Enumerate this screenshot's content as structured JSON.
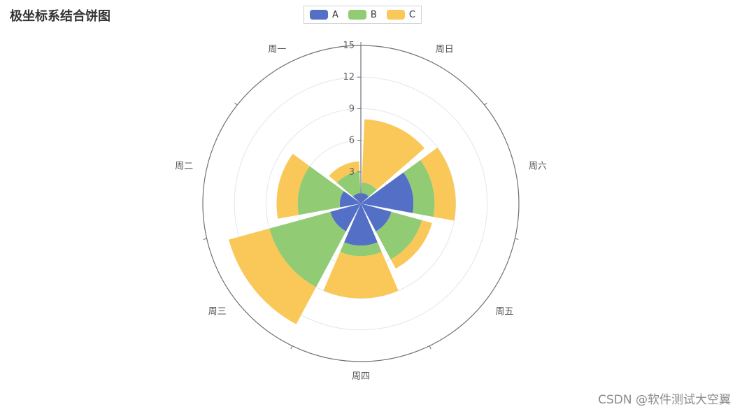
{
  "title": "极坐标系结合饼图",
  "watermark": "CSDN @软件测试大空翼",
  "legend": [
    {
      "name": "A",
      "color": "#5470c6"
    },
    {
      "name": "B",
      "color": "#91cc75"
    },
    {
      "name": "C",
      "color": "#fac858"
    }
  ],
  "chart_data": {
    "type": "bar",
    "coordinate_system": "polar",
    "stacked": true,
    "categories": [
      "周一",
      "周二",
      "周三",
      "周四",
      "周五",
      "周六",
      "周日"
    ],
    "series": [
      {
        "name": "A",
        "values": [
          1,
          2,
          3,
          4,
          3,
          5,
          1
        ]
      },
      {
        "name": "B",
        "values": [
          2,
          4,
          6,
          1,
          3,
          2,
          1
        ]
      },
      {
        "name": "C",
        "values": [
          1,
          2,
          4,
          4,
          1,
          2,
          6
        ]
      }
    ],
    "radius_axis": {
      "min": 0,
      "max": 15,
      "ticks": [
        0,
        3,
        6,
        9,
        12,
        15
      ]
    },
    "grid": true,
    "legend_position": "top-center"
  }
}
